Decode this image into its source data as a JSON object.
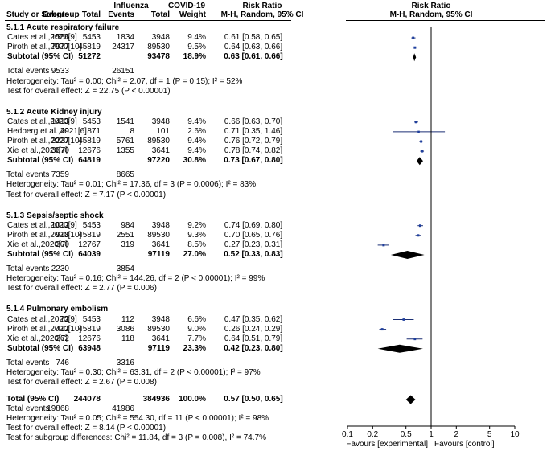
{
  "header": {
    "group1": "Influenza",
    "group2": "COVID-19",
    "rr_title_left": "Risk Ratio",
    "rr_title_right": "Risk Ratio",
    "cols": {
      "study": "Study or Subgroup",
      "events1": "Events",
      "total1": "Total",
      "events2": "Events",
      "total2": "Total",
      "weight": "Weight",
      "method_left": "M-H, Random, 95% CI",
      "method_right": "M-H, Random, 95% CI"
    }
  },
  "subgroups": [
    {
      "title": "5.1.1 Acute respiratory failure",
      "studies": [
        {
          "name": "Cates et al.,2020[9]",
          "e1": "1556",
          "t1": "5453",
          "e2": "1834",
          "t2": "3948",
          "weight": "9.4%",
          "ci": "0.61 [0.58, 0.65]",
          "rr": 0.61,
          "lo": 0.58,
          "hi": 0.65,
          "w": 9.4
        },
        {
          "name": "Piroth et al.,2020[10]",
          "e1": "7977",
          "t1": "45819",
          "e2": "24317",
          "t2": "89530",
          "weight": "9.5%",
          "ci": "0.64 [0.63, 0.66]",
          "rr": 0.64,
          "lo": 0.63,
          "hi": 0.66,
          "w": 9.5
        }
      ],
      "subtotal": {
        "label": "Subtotal (95% CI)",
        "t1": "51272",
        "t2": "93478",
        "weight": "18.9%",
        "ci": "0.63 [0.61, 0.66]",
        "rr": 0.63,
        "lo": 0.61,
        "hi": 0.66
      },
      "total_events": {
        "label": "Total events",
        "e1": "9533",
        "e2": "26151"
      },
      "heterogeneity": "Heterogeneity: Tau² = 0.00; Chi² = 2.07, df = 1 (P = 0.15); I² = 52%",
      "overall": "Test for overall effect: Z = 22.75 (P < 0.00001)"
    },
    {
      "title": "5.1.2 Acute Kidney injury",
      "studies": [
        {
          "name": "Cates et al.,2020[9]",
          "e1": "1413",
          "t1": "5453",
          "e2": "1541",
          "t2": "3948",
          "weight": "9.4%",
          "ci": "0.66 [0.63, 0.70]",
          "rr": 0.66,
          "lo": 0.63,
          "hi": 0.7,
          "w": 9.4
        },
        {
          "name": "Hedberg et al.,2021[6]",
          "e1": "49",
          "t1": "871",
          "e2": "8",
          "t2": "101",
          "weight": "2.6%",
          "ci": "0.71 [0.35, 1.46]",
          "rr": 0.71,
          "lo": 0.35,
          "hi": 1.46,
          "w": 2.6
        },
        {
          "name": "Piroth et al.,2020[10]",
          "e1": "2227",
          "t1": "45819",
          "e2": "5761",
          "t2": "89530",
          "weight": "9.4%",
          "ci": "0.76 [0.72, 0.79]",
          "rr": 0.76,
          "lo": 0.72,
          "hi": 0.79,
          "w": 9.4
        },
        {
          "name": "Xie et al.,2020[7]",
          "e1": "3670",
          "t1": "12676",
          "e2": "1355",
          "t2": "3641",
          "weight": "9.4%",
          "ci": "0.78 [0.74, 0.82]",
          "rr": 0.78,
          "lo": 0.74,
          "hi": 0.82,
          "w": 9.4
        }
      ],
      "subtotal": {
        "label": "Subtotal (95% CI)",
        "t1": "64819",
        "t2": "97220",
        "weight": "30.8%",
        "ci": "0.73 [0.67, 0.80]",
        "rr": 0.73,
        "lo": 0.67,
        "hi": 0.8
      },
      "total_events": {
        "label": "Total events",
        "e1": "7359",
        "e2": "8665"
      },
      "heterogeneity": "Heterogeneity: Tau² = 0.01; Chi² = 17.36, df = 3 (P = 0.0006); I² = 83%",
      "overall": "Test for overall effect: Z = 7.17 (P < 0.00001)"
    },
    {
      "title": "5.1.3 Sepsis/septic shock",
      "studies": [
        {
          "name": "Cates et al.,2020[9]",
          "e1": "1012",
          "t1": "5453",
          "e2": "984",
          "t2": "3948",
          "weight": "9.2%",
          "ci": "0.74 [0.69, 0.80]",
          "rr": 0.74,
          "lo": 0.69,
          "hi": 0.8,
          "w": 9.2
        },
        {
          "name": "Piroth et al.,2020[10]",
          "e1": "918",
          "t1": "45819",
          "e2": "2551",
          "t2": "89530",
          "weight": "9.3%",
          "ci": "0.70 [0.65, 0.76]",
          "rr": 0.7,
          "lo": 0.65,
          "hi": 0.76,
          "w": 9.3
        },
        {
          "name": "Xie et al.,2020[7]",
          "e1": "300",
          "t1": "12767",
          "e2": "319",
          "t2": "3641",
          "weight": "8.5%",
          "ci": "0.27 [0.23, 0.31]",
          "rr": 0.27,
          "lo": 0.23,
          "hi": 0.31,
          "w": 8.5
        }
      ],
      "subtotal": {
        "label": "Subtotal (95% CI)",
        "t1": "64039",
        "t2": "97119",
        "weight": "27.0%",
        "ci": "0.52 [0.33, 0.83]",
        "rr": 0.52,
        "lo": 0.33,
        "hi": 0.83
      },
      "total_events": {
        "label": "Total events",
        "e1": "2230",
        "e2": "3854"
      },
      "heterogeneity": "Heterogeneity: Tau² = 0.16; Chi² = 144.26, df = 2 (P < 0.00001); I² = 99%",
      "overall": "Test for overall effect: Z = 2.77 (P = 0.006)"
    },
    {
      "title": "5.1.4 Pulmonary embolism",
      "studies": [
        {
          "name": "Cates et al.,2020[9]",
          "e1": "72",
          "t1": "5453",
          "e2": "112",
          "t2": "3948",
          "weight": "6.6%",
          "ci": "0.47 [0.35, 0.62]",
          "rr": 0.47,
          "lo": 0.35,
          "hi": 0.62,
          "w": 6.6
        },
        {
          "name": "Piroth et al.,2020[10]",
          "e1": "412",
          "t1": "45819",
          "e2": "3086",
          "t2": "89530",
          "weight": "9.0%",
          "ci": "0.26 [0.24, 0.29]",
          "rr": 0.26,
          "lo": 0.24,
          "hi": 0.29,
          "w": 9.0
        },
        {
          "name": "Xie et al.,2020[7]",
          "e1": "262",
          "t1": "12676",
          "e2": "118",
          "t2": "3641",
          "weight": "7.7%",
          "ci": "0.64 [0.51, 0.79]",
          "rr": 0.64,
          "lo": 0.51,
          "hi": 0.79,
          "w": 7.7
        }
      ],
      "subtotal": {
        "label": "Subtotal (95% CI)",
        "t1": "63948",
        "t2": "97119",
        "weight": "23.3%",
        "ci": "0.42 [0.23, 0.80]",
        "rr": 0.42,
        "lo": 0.23,
        "hi": 0.8
      },
      "total_events": {
        "label": "Total events",
        "e1": "746",
        "e2": "3316"
      },
      "heterogeneity": "Heterogeneity: Tau² = 0.30; Chi² = 63.31, df = 2 (P < 0.00001); I² = 97%",
      "overall": "Test for overall effect: Z = 2.67 (P = 0.008)"
    }
  ],
  "total": {
    "label": "Total (95% CI)",
    "t1": "244078",
    "t2": "384936",
    "weight": "100.0%",
    "ci": "0.57 [0.50, 0.65]",
    "rr": 0.57,
    "lo": 0.5,
    "hi": 0.65,
    "events_label": "Total events",
    "e1": "19868",
    "e2": "41986",
    "heterogeneity": "Heterogeneity: Tau² = 0.05; Chi² = 554.30, df = 11 (P < 0.00001); I² = 98%",
    "overall": "Test for overall effect: Z = 8.14 (P < 0.00001)",
    "subgroup_diff": "Test for subgroup differences: Chi² = 11.84, df = 3 (P = 0.008), I² = 74.7%"
  },
  "chart_data": {
    "type": "forest",
    "scale": "log",
    "xlim": [
      0.1,
      10
    ],
    "null_value": 1,
    "axis_ticks": [
      {
        "value": 0.1,
        "label": "0.1"
      },
      {
        "value": 0.2,
        "label": "0.2"
      },
      {
        "value": 0.5,
        "label": "0.5"
      },
      {
        "value": 1,
        "label": "1"
      },
      {
        "value": 2,
        "label": "2"
      },
      {
        "value": 5,
        "label": "5"
      },
      {
        "value": 10,
        "label": "10"
      }
    ],
    "favours_left": "Favours [experimental]",
    "favours_right": "Favours [control]",
    "marker_color": "#1f3f9e"
  }
}
